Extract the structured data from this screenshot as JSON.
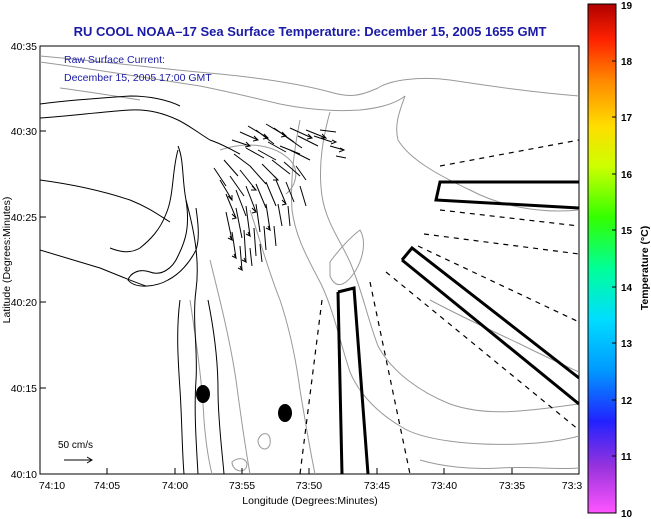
{
  "title": "RU COOL   NOAA–17  Sea Surface Temperature:  December 15, 2005 1655 GMT",
  "annotation": {
    "line1": "Raw Surface Current:",
    "line2": "December 15, 2005 17:00 GMT"
  },
  "scale": {
    "label": "50 cm/s"
  },
  "axes": {
    "xlabel": "Longitude (Degrees:Minutes)",
    "ylabel": "Latitude (Degrees:Minutes)",
    "xticks": [
      "74:10",
      "74:05",
      "74:00",
      "73:55",
      "73:50",
      "73:45",
      "73:40",
      "73:35",
      "73:3"
    ],
    "yticks": [
      "40:35",
      "40:30",
      "40:25",
      "40:20",
      "40:15",
      "40:10"
    ]
  },
  "colorbar": {
    "label": "Temperature (°C)",
    "ticks": [
      "19",
      "18",
      "17",
      "16",
      "15",
      "14",
      "13",
      "12",
      "11",
      "10"
    ],
    "min": 10,
    "max": 19,
    "colors": [
      "#ff55ff",
      "#9933dd",
      "#2222ff",
      "#0099ff",
      "#00ddff",
      "#00ff99",
      "#33ff00",
      "#ccff00",
      "#ffdd00",
      "#ff8800",
      "#ff2200",
      "#b00000"
    ]
  },
  "colors": {
    "title": "#1a1aa6",
    "annotation": "#1a1aa6",
    "coast": "#000000",
    "bathy": "#999999"
  }
}
